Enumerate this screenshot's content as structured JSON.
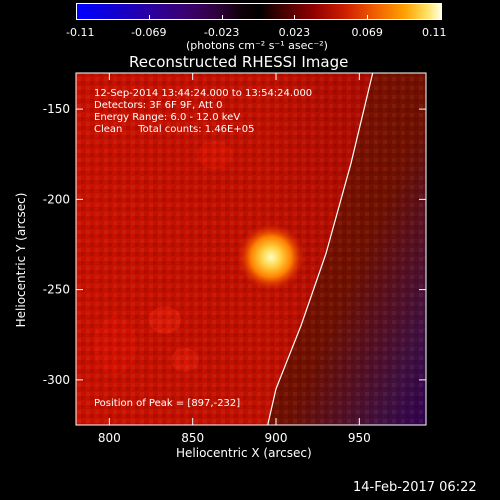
{
  "chart_data": {
    "type": "heatmap",
    "title": "Reconstructed RHESSI Image",
    "xlabel": "Heliocentric X (arcsec)",
    "ylabel": "Heliocentric Y (arcsec)",
    "xlim": [
      780,
      990
    ],
    "ylim": [
      -325,
      -130
    ],
    "x_ticks": [
      "800",
      "850",
      "900",
      "950"
    ],
    "y_ticks": [
      "-150",
      "-200",
      "-250",
      "-300"
    ],
    "x_tick_values": [
      800,
      850,
      900,
      950
    ],
    "y_tick_values": [
      -150,
      -200,
      -250,
      -300
    ],
    "colorbar": {
      "range": [
        -0.11,
        0.11
      ],
      "ticks": [
        "-0.11",
        "-0.069",
        "-0.023",
        "0.023",
        "0.069",
        "0.11"
      ],
      "units_label": "(photons cm⁻² s⁻¹ asec⁻²)"
    },
    "annotations": [
      "12-Sep-2014 13:44:24.000 to 13:54:24.000",
      "Detectors: 3F 6F 9F, Att 0",
      "Energy Range: 6.0 - 12.0 keV",
      "Clean     Total counts: 1.46E+05"
    ],
    "peak_label": "Position of Peak = [897,-232]",
    "peak": {
      "x": 897,
      "y": -232
    },
    "limb": [
      [
        958,
        -130
      ],
      [
        945,
        -180
      ],
      [
        930,
        -230
      ],
      [
        915,
        -270
      ],
      [
        900,
        -305
      ],
      [
        895,
        -325
      ]
    ]
  },
  "footer": {
    "timestamp": "14-Feb-2017 06:22"
  },
  "colors": {
    "background": "#000000",
    "map_base": "#c01000",
    "limb": "#ffffff"
  }
}
